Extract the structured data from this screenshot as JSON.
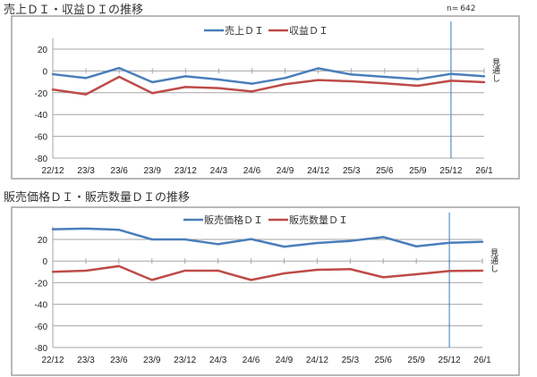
{
  "sample_size": {
    "label": "n=",
    "value": "642"
  },
  "outlook_label": "見通し",
  "colors": {
    "series1": "#4a7ebb",
    "series2": "#be4b48",
    "divider": "#3a7ab8",
    "grid": "#a6a6a6",
    "frame": "#a0a0a0"
  },
  "chart_data": [
    {
      "type": "line",
      "title": "売上ＤＩ・収益ＤＩの推移",
      "categories": [
        "22/12",
        "23/3",
        "23/6",
        "23/9",
        "23/12",
        "24/3",
        "24/6",
        "24/9",
        "24/12",
        "25/3",
        "25/6",
        "25/9",
        "25/12",
        "26/1"
      ],
      "y_ticks": [
        "20",
        "0",
        "-20",
        "-40",
        "-60",
        "-80"
      ],
      "ylim": [
        -80,
        20
      ],
      "grid": "horizontal",
      "legend": "top-center",
      "divider_after": "25/12",
      "series": [
        {
          "name": "売上ＤＩ",
          "values": [
            -3,
            -6.5,
            2.7,
            -10.3,
            -4.9,
            -7.9,
            -11.7,
            -6.5,
            2.4,
            -3.3,
            -5.4,
            -7.6,
            -2.7,
            -4.9
          ]
        },
        {
          "name": "収益ＤＩ",
          "values": [
            -17.1,
            -21.5,
            -5.4,
            -20.4,
            -14.7,
            -15.8,
            -18.8,
            -12.2,
            -8.4,
            -9.5,
            -11.4,
            -13.6,
            -9,
            -10.3
          ]
        }
      ]
    },
    {
      "type": "line",
      "title": "販売価格ＤＩ・販売数量ＤＩの推移",
      "categories": [
        "22/12",
        "23/3",
        "23/6",
        "23/9",
        "23/12",
        "24/3",
        "24/6",
        "24/9",
        "24/12",
        "25/3",
        "25/6",
        "25/9",
        "25/12",
        "26/1"
      ],
      "y_ticks": [
        "20",
        "0",
        "-20",
        "-40",
        "-60",
        "-80"
      ],
      "ylim": [
        -80,
        30
      ],
      "grid": "horizontal",
      "legend": "top-center",
      "divider_after": "25/12",
      "series": [
        {
          "name": "販売価格ＤＩ",
          "values": [
            29.4,
            30,
            28.9,
            20,
            20,
            15.6,
            20.3,
            13.3,
            16.7,
            18.6,
            22.2,
            13.6,
            16.9,
            17.8
          ]
        },
        {
          "name": "販売数量ＤＩ",
          "values": [
            -10,
            -8.9,
            -4.7,
            -17.5,
            -8.9,
            -8.9,
            -17.5,
            -11.4,
            -8.1,
            -7.5,
            -15,
            -12.2,
            -9.2,
            -8.9
          ]
        }
      ]
    }
  ]
}
